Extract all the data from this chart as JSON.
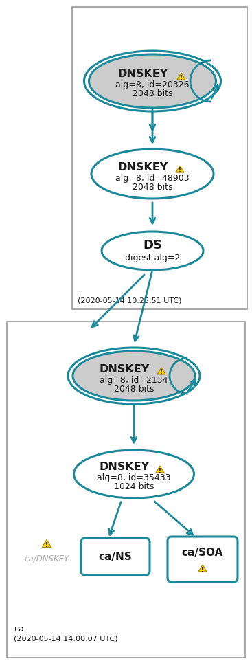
{
  "teal": "#1a8a9a",
  "gray_fill": "#cccccc",
  "white_fill": "#FFFFFF",
  "warning_yellow": "#FFD700",
  "warning_border": "#aa8800",
  "text_dark": "#1a1a1a",
  "text_gray": "#aaaaaa",
  "box1_label": ".",
  "box1_time": "(2020-05-14 10:25:51 UTC)",
  "box2_label": "ca",
  "box2_time": "(2020-05-14 14:00:07 UTC)",
  "node1_title": "DNSKEY",
  "node1_line1": "alg=8, id=20326",
  "node1_line2": "2048 bits",
  "node2_title": "DNSKEY",
  "node2_line1": "alg=8, id=48903",
  "node2_line2": "2048 bits",
  "node3_title": "DS",
  "node3_line1": "digest alg=2",
  "node4_title": "DNSKEY",
  "node4_line1": "alg=8, id=2134",
  "node4_line2": "2048 bits",
  "node5_title": "DNSKEY",
  "node5_line1": "alg=8, id=35433",
  "node5_line2": "1024 bits",
  "node6_title": "ca/NS",
  "node7_title": "ca/SOA",
  "node8_title": "ca/DNSKEY"
}
